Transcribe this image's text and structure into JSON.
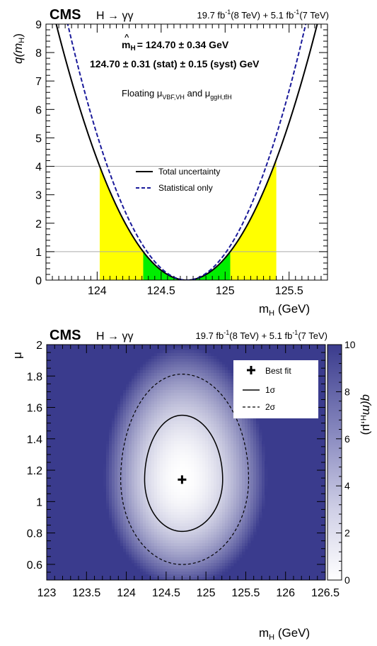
{
  "chart_data": [
    {
      "type": "line",
      "header": {
        "experiment": "CMS",
        "channel": "H → γγ",
        "lumi_8": "19.7 fb",
        "lumi_8_sup": "-1",
        "lumi_8_energy": "(8 TeV) + 5.1 fb",
        "lumi_7_sup": "-1",
        "lumi_7_energy": "(7 TeV)"
      },
      "result_line1": "= 124.70 ± 0.34 GeV",
      "result_line1_symbol": "m",
      "result_line1_sub": "H",
      "result_line2": "124.70 ± 0.31 (stat) ± 0.15 (syst) GeV",
      "floating_text": {
        "a": "Floating μ",
        "a_sub": "VBF,VH",
        "b": " and μ",
        "b_sub": "ggH,tt̄H"
      },
      "xlabel": "m",
      "xlabel_sub": "H",
      "xlabel_unit": " (GeV)",
      "ylabel": "q(m",
      "ylabel_sub": "H",
      "ylabel_close": ")",
      "xlim": [
        123.6,
        125.8
      ],
      "ylim": [
        0,
        9
      ],
      "x_ticks": [
        "124",
        "124.5",
        "125",
        "125.5"
      ],
      "y_ticks": [
        "0",
        "1",
        "2",
        "3",
        "4",
        "5",
        "6",
        "7",
        "8",
        "9"
      ],
      "reference_lines": [
        1,
        4
      ],
      "best_fit": 124.7,
      "band_1sigma": [
        124.36,
        125.04
      ],
      "band_2sigma": [
        124.02,
        125.4
      ],
      "colors": {
        "band_1sigma": "#00ee00",
        "band_2sigma": "#ffff00",
        "total": "#000000",
        "stat": "#1a1a9a"
      },
      "series": [
        {
          "name": "Total uncertainty",
          "style": "solid",
          "sigma": 0.34
        },
        {
          "name": "Statistical only",
          "style": "dashed",
          "sigma": 0.31
        }
      ],
      "legend_position": "center"
    },
    {
      "type": "heatmap",
      "header": {
        "experiment": "CMS",
        "channel": "H → γγ",
        "lumi_8": "19.7 fb",
        "lumi_8_sup": "-1",
        "lumi_8_energy": "(8 TeV) + 5.1 fb",
        "lumi_7_sup": "-1",
        "lumi_7_energy": "(7 TeV)"
      },
      "xlabel": "m",
      "xlabel_sub": "H",
      "xlabel_unit": " (GeV)",
      "ylabel": "μ",
      "zlabel": "q(m",
      "zlabel_sub": "H",
      "zlabel_close": ",μ)",
      "xlim": [
        123,
        126.5
      ],
      "ylim": [
        0.5,
        2
      ],
      "zlim": [
        0,
        10
      ],
      "x_ticks": [
        "123",
        "123.5",
        "124",
        "124.5",
        "125",
        "125.5",
        "126",
        "126.5"
      ],
      "y_ticks": [
        "0.6",
        "0.8",
        "1",
        "1.2",
        "1.4",
        "1.6",
        "1.8",
        "2"
      ],
      "z_ticks": [
        "0",
        "2",
        "4",
        "6",
        "8",
        "10"
      ],
      "best_fit": {
        "x": 124.7,
        "y": 1.14
      },
      "contours": [
        {
          "name": "1σ",
          "style": "solid",
          "q": 2.3,
          "x_range": [
            124.23,
            125.21
          ],
          "y_range": [
            0.81,
            1.55
          ]
        },
        {
          "name": "2σ",
          "style": "dashed",
          "q": 6.18,
          "x_range": [
            123.86,
            125.52
          ],
          "y_range": [
            0.61,
            1.84
          ]
        }
      ],
      "legend": [
        {
          "symbol": "cross",
          "label": "Best fit"
        },
        {
          "symbol": "solid",
          "label": "1σ"
        },
        {
          "symbol": "dashed",
          "label": "2σ"
        }
      ],
      "legend_position": "top-right",
      "colors": {
        "low": "#ffffff",
        "high": "#3a3b8d"
      }
    }
  ]
}
